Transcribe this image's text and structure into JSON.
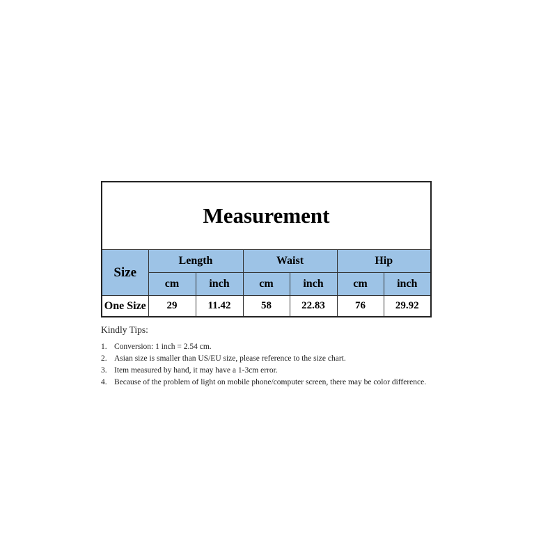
{
  "table": {
    "title": "Measurement",
    "size_header": "Size",
    "groups": [
      "Length",
      "Waist",
      "Hip"
    ],
    "units": [
      "cm",
      "inch",
      "cm",
      "inch",
      "cm",
      "inch"
    ],
    "rows": [
      {
        "size": "One Size",
        "values": [
          "29",
          "11.42",
          "58",
          "22.83",
          "76",
          "29.92"
        ]
      }
    ],
    "header_color": "#9dc3e6"
  },
  "tips": {
    "heading": "Kindly Tips:",
    "items": [
      {
        "num": "1.",
        "text": "Conversion: 1 inch = 2.54 cm."
      },
      {
        "num": "2.",
        "text": "Asian size is smaller than US/EU size, please reference to the size chart."
      },
      {
        "num": "3.",
        "text": "Item measured by hand, it may have a 1-3cm error."
      },
      {
        "num": "4.",
        "text": "Because of the problem of light on mobile phone/computer screen, there may be color difference."
      }
    ]
  }
}
